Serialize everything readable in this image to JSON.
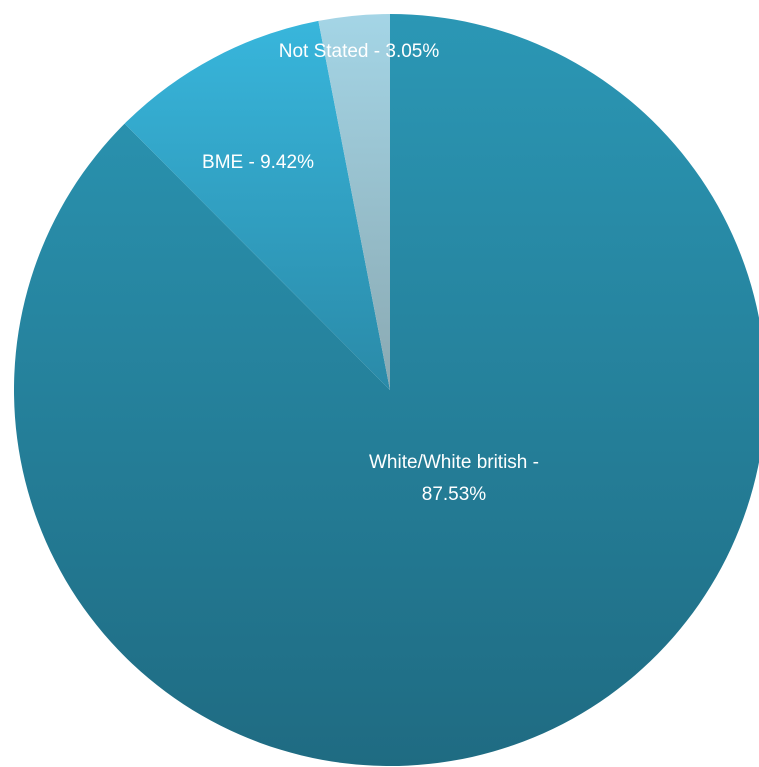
{
  "chart_data": {
    "type": "pie",
    "title": "",
    "slices": [
      {
        "label": "White/White british",
        "value": 87.53,
        "display_lines": [
          "White/White british -",
          "87.53%"
        ],
        "color_top": "#2b97b5",
        "color_bottom": "#1f6b82"
      },
      {
        "label": "BME",
        "value": 9.42,
        "display_lines": [
          "BME - 9.42%"
        ],
        "color_top": "#38b6dc",
        "color_bottom": "#2a8aa8"
      },
      {
        "label": "Not Stated",
        "value": 3.05,
        "display_lines": [
          "Not Stated - 3.05%"
        ],
        "color_top": "#a4d5e6",
        "color_bottom": "#8aa9b2"
      }
    ],
    "start_angle_deg": 0,
    "direction": "clockwise",
    "label_color": "#ffffff",
    "legend": "none"
  }
}
